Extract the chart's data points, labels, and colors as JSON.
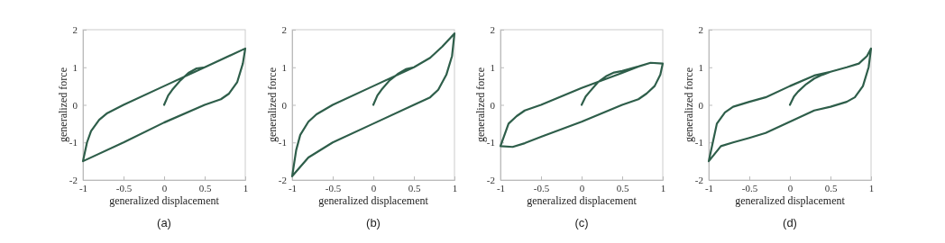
{
  "chart_data": [
    {
      "type": "line",
      "title": "(a)",
      "xlabel": "generalized displacement",
      "ylabel": "generalized force",
      "xlim": [
        -1,
        1
      ],
      "ylim": [
        -2,
        2
      ],
      "xticks": [
        -1,
        -0.5,
        0,
        0.5,
        1
      ],
      "yticks": [
        -2,
        -1,
        0,
        1,
        2
      ],
      "series": [
        {
          "color": "#2e5e4a",
          "x": [
            0,
            0.05,
            0.1,
            0.2,
            0.3,
            0.4,
            0.5,
            0.75,
            1,
            0.97,
            0.9,
            0.8,
            0.7,
            0.5,
            0,
            -0.5,
            -1,
            -0.95,
            -0.9,
            -0.8,
            -0.7,
            -0.5,
            0,
            0.5,
            1
          ],
          "values": [
            0,
            0.25,
            0.4,
            0.65,
            0.85,
            0.97,
            1.0,
            1.25,
            1.5,
            1.1,
            0.6,
            0.3,
            0.15,
            0,
            -0.47,
            -1.0,
            -1.5,
            -1.0,
            -0.7,
            -0.4,
            -0.22,
            0,
            0.5,
            1.0,
            1.5
          ]
        }
      ]
    },
    {
      "type": "line",
      "title": "(b)",
      "xlabel": "generalized displacement",
      "ylabel": "generalized force",
      "xlim": [
        -1,
        1
      ],
      "ylim": [
        -2,
        2
      ],
      "xticks": [
        -1,
        -0.5,
        0,
        0.5,
        1
      ],
      "yticks": [
        -2,
        -1,
        0,
        1,
        2
      ],
      "series": [
        {
          "color": "#2e5e4a",
          "x": [
            0,
            0.05,
            0.1,
            0.2,
            0.3,
            0.4,
            0.5,
            0.7,
            0.85,
            1,
            0.97,
            0.9,
            0.8,
            0.7,
            0.5,
            0,
            -0.5,
            -0.8,
            -1,
            -0.95,
            -0.9,
            -0.8,
            -0.7,
            -0.5,
            0,
            0.5,
            0.7,
            0.85,
            1
          ],
          "values": [
            0,
            0.25,
            0.4,
            0.65,
            0.82,
            0.95,
            1.0,
            1.25,
            1.55,
            1.9,
            1.3,
            0.8,
            0.4,
            0.2,
            0,
            -0.5,
            -1.0,
            -1.4,
            -1.9,
            -1.2,
            -0.8,
            -0.45,
            -0.25,
            0,
            0.5,
            1.0,
            1.25,
            1.55,
            1.9
          ]
        }
      ]
    },
    {
      "type": "line",
      "title": "(c)",
      "xlabel": "generalized displacement",
      "ylabel": "generalized force",
      "xlim": [
        -1,
        1
      ],
      "ylim": [
        -2,
        2
      ],
      "xticks": [
        -1,
        -0.5,
        0,
        0.5,
        1
      ],
      "yticks": [
        -2,
        -1,
        0,
        1,
        2
      ],
      "series": [
        {
          "color": "#2e5e4a",
          "x": [
            0,
            0.05,
            0.1,
            0.2,
            0.3,
            0.4,
            0.5,
            0.7,
            0.85,
            1,
            0.97,
            0.9,
            0.8,
            0.7,
            0.5,
            0,
            -0.5,
            -0.7,
            -0.85,
            -1,
            -0.95,
            -0.9,
            -0.8,
            -0.7,
            -0.5,
            0,
            0.5,
            0.7,
            0.85,
            1
          ],
          "values": [
            0,
            0.22,
            0.35,
            0.6,
            0.76,
            0.86,
            0.9,
            1.02,
            1.12,
            1.1,
            0.8,
            0.5,
            0.3,
            0.15,
            0,
            -0.45,
            -0.85,
            -1.02,
            -1.12,
            -1.1,
            -0.8,
            -0.5,
            -0.3,
            -0.15,
            0,
            0.45,
            0.85,
            1.02,
            1.12,
            1.1
          ]
        }
      ]
    },
    {
      "type": "line",
      "title": "(d)",
      "xlabel": "generalized displacement",
      "ylabel": "generalized force",
      "xlim": [
        -1,
        1
      ],
      "ylim": [
        -2,
        2
      ],
      "xticks": [
        -1,
        -0.5,
        0,
        0.5,
        1
      ],
      "yticks": [
        -2,
        -1,
        0,
        1,
        2
      ],
      "series": [
        {
          "color": "#2e5e4a",
          "x": [
            0,
            0.05,
            0.1,
            0.2,
            0.3,
            0.4,
            0.5,
            0.7,
            0.85,
            0.95,
            1,
            0.97,
            0.9,
            0.8,
            0.7,
            0.5,
            0.3,
            0,
            -0.3,
            -0.5,
            -0.7,
            -0.85,
            -1,
            -0.95,
            -0.9,
            -0.8,
            -0.7,
            -0.5,
            -0.3,
            0,
            0.3,
            0.5,
            0.7,
            0.85,
            0.95,
            1
          ],
          "values": [
            0,
            0.22,
            0.35,
            0.55,
            0.7,
            0.8,
            0.88,
            1.0,
            1.1,
            1.3,
            1.5,
            1.0,
            0.5,
            0.2,
            0.08,
            -0.05,
            -0.15,
            -0.45,
            -0.75,
            -0.88,
            -1.0,
            -1.1,
            -1.5,
            -1.0,
            -0.5,
            -0.2,
            -0.05,
            0.08,
            0.2,
            0.5,
            0.78,
            0.88,
            1.0,
            1.1,
            1.3,
            1.5
          ]
        }
      ]
    }
  ]
}
